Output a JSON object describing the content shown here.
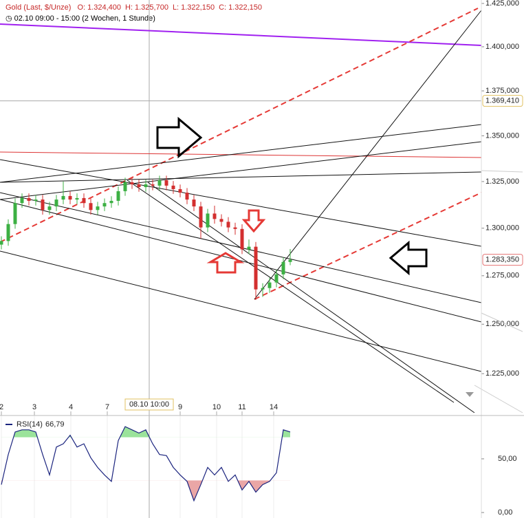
{
  "chart_data": [
    {
      "type": "candlestick",
      "subtitle": "02.10 09:00 - 15:00 (2 Wochen, 1 Stunde)",
      "ohlc_readout": [
        {
          "label": "O:",
          "value": "1.324,400"
        },
        {
          "label": "H:",
          "value": "1.325,700"
        },
        {
          "label": "L:",
          "value": "1.322,150"
        },
        {
          "label": "C:",
          "value": "1.322,150"
        }
      ],
      "series": [
        {
          "name": "Gold (Last, $/Unze)",
          "up_color": "#3cb043",
          "down_color": "#d32f2f",
          "open": [
            1291.3,
            1293.2,
            1302.2,
            1313.4,
            1316.1,
            1314.6,
            1315.3,
            1309.7,
            1311.6,
            1315.3,
            1317.2,
            1315.3,
            1316.1,
            1313.4,
            1309.7,
            1311.6,
            1313.4,
            1314.6,
            1319.8,
            1324.6,
            1323.5,
            1322.0,
            1323.5,
            1322.8,
            1325.7,
            1322.8,
            1320.9,
            1319.0,
            1315.3,
            1311.6,
            1300.4,
            1307.8,
            1304.9,
            1303.4,
            1300.4,
            1299.6,
            1288.8,
            1290.2,
            1267.9,
            1268.6,
            1271.5,
            1275.7,
            1282.2
          ],
          "high": [
            1295.7,
            1304.7,
            1315.9,
            1318.6,
            1318.6,
            1317.8,
            1317.8,
            1314.1,
            1317.8,
            1325.0,
            1319.7,
            1318.6,
            1318.6,
            1315.9,
            1314.1,
            1315.9,
            1317.1,
            1322.3,
            1327.1,
            1327.1,
            1326.0,
            1326.0,
            1326.0,
            1328.2,
            1328.2,
            1325.3,
            1323.4,
            1321.5,
            1317.8,
            1314.1,
            1310.3,
            1312.0,
            1307.4,
            1305.9,
            1302.9,
            1302.1,
            1294.0,
            1292.7,
            1271.1,
            1274.0,
            1278.2,
            1284.7,
            1289.0
          ],
          "low": [
            1288.8,
            1290.7,
            1299.7,
            1310.9,
            1312.1,
            1312.1,
            1307.2,
            1307.2,
            1309.1,
            1312.8,
            1312.8,
            1312.8,
            1310.9,
            1307.2,
            1307.2,
            1309.1,
            1310.9,
            1312.1,
            1317.3,
            1321.0,
            1319.5,
            1319.5,
            1320.3,
            1320.3,
            1320.3,
            1318.4,
            1316.5,
            1312.8,
            1309.1,
            1294.5,
            1297.9,
            1302.4,
            1300.9,
            1297.9,
            1296.5,
            1286.3,
            1286.3,
            1262.5,
            1264.0,
            1266.1,
            1269.0,
            1273.2,
            1280.5
          ],
          "close": [
            1293.2,
            1302.2,
            1313.4,
            1316.1,
            1314.6,
            1315.3,
            1309.7,
            1311.6,
            1315.3,
            1317.2,
            1315.3,
            1316.1,
            1313.4,
            1309.7,
            1311.6,
            1313.4,
            1314.6,
            1319.8,
            1324.6,
            1323.5,
            1322.0,
            1323.5,
            1322.8,
            1325.7,
            1322.8,
            1320.9,
            1319.0,
            1315.3,
            1311.6,
            1300.4,
            1307.8,
            1304.9,
            1303.4,
            1300.4,
            1299.6,
            1288.8,
            1290.2,
            1267.9,
            1268.6,
            1271.5,
            1275.7,
            1282.2,
            1283.35
          ]
        }
      ],
      "ylim": [
        1205.6,
        1427.0
      ],
      "log_scale": true,
      "yticks": [
        {
          "value": 1425,
          "label": "1.425,000"
        },
        {
          "value": 1400,
          "label": "1.400,000"
        },
        {
          "value": 1375,
          "label": "1.375,000"
        },
        {
          "value": 1350,
          "label": "1.350,000"
        },
        {
          "value": 1325,
          "label": "1.325,000"
        },
        {
          "value": 1300,
          "label": "1.300,000"
        },
        {
          "value": 1275,
          "label": "1.275,000"
        },
        {
          "value": 1250,
          "label": "1.250,000"
        },
        {
          "value": 1225,
          "label": "1.225,000"
        }
      ],
      "xlim": [
        -0.2,
        69.8
      ],
      "xticks": [
        {
          "value": 0,
          "label": "2"
        },
        {
          "value": 4.8,
          "label": "3"
        },
        {
          "value": 10.1,
          "label": "4"
        },
        {
          "value": 15.4,
          "label": "7"
        },
        {
          "value": 26,
          "label": "9"
        },
        {
          "value": 31.3,
          "label": "10"
        },
        {
          "value": 35,
          "label": "11"
        },
        {
          "value": 39.6,
          "label": "14"
        }
      ],
      "crosshair": {
        "x": {
          "value": 21.5,
          "label": "08.10 10:00"
        },
        "y": {
          "value": 1369.41,
          "label": "1.369,410"
        }
      },
      "last_price": {
        "value": 1283.35,
        "label": "1.283,350"
      }
    },
    {
      "type": "line",
      "series": [
        {
          "name": "RSI(14)",
          "value_label": "66,79",
          "color": "#1a237e",
          "values": [
            26,
            54,
            75,
            77,
            77,
            75,
            54,
            35,
            61,
            64,
            72,
            61,
            64,
            51,
            42,
            35,
            29,
            67,
            80,
            77,
            74,
            77,
            64,
            54,
            53,
            42,
            35,
            29,
            11,
            26,
            42,
            35,
            42,
            29,
            35,
            21,
            29,
            19,
            26,
            29,
            37,
            77,
            75
          ]
        }
      ],
      "upper_band": 70,
      "lower_band": 30,
      "upper_color": "#9be39b",
      "lower_color": "#eaa6a6",
      "ylim": [
        -5.1,
        89.7
      ],
      "xlim": [
        -0.2,
        69.8
      ],
      "yticks": [
        {
          "value": 50,
          "label": "50,00"
        },
        {
          "value": 0,
          "label": "0,00"
        }
      ]
    }
  ]
}
